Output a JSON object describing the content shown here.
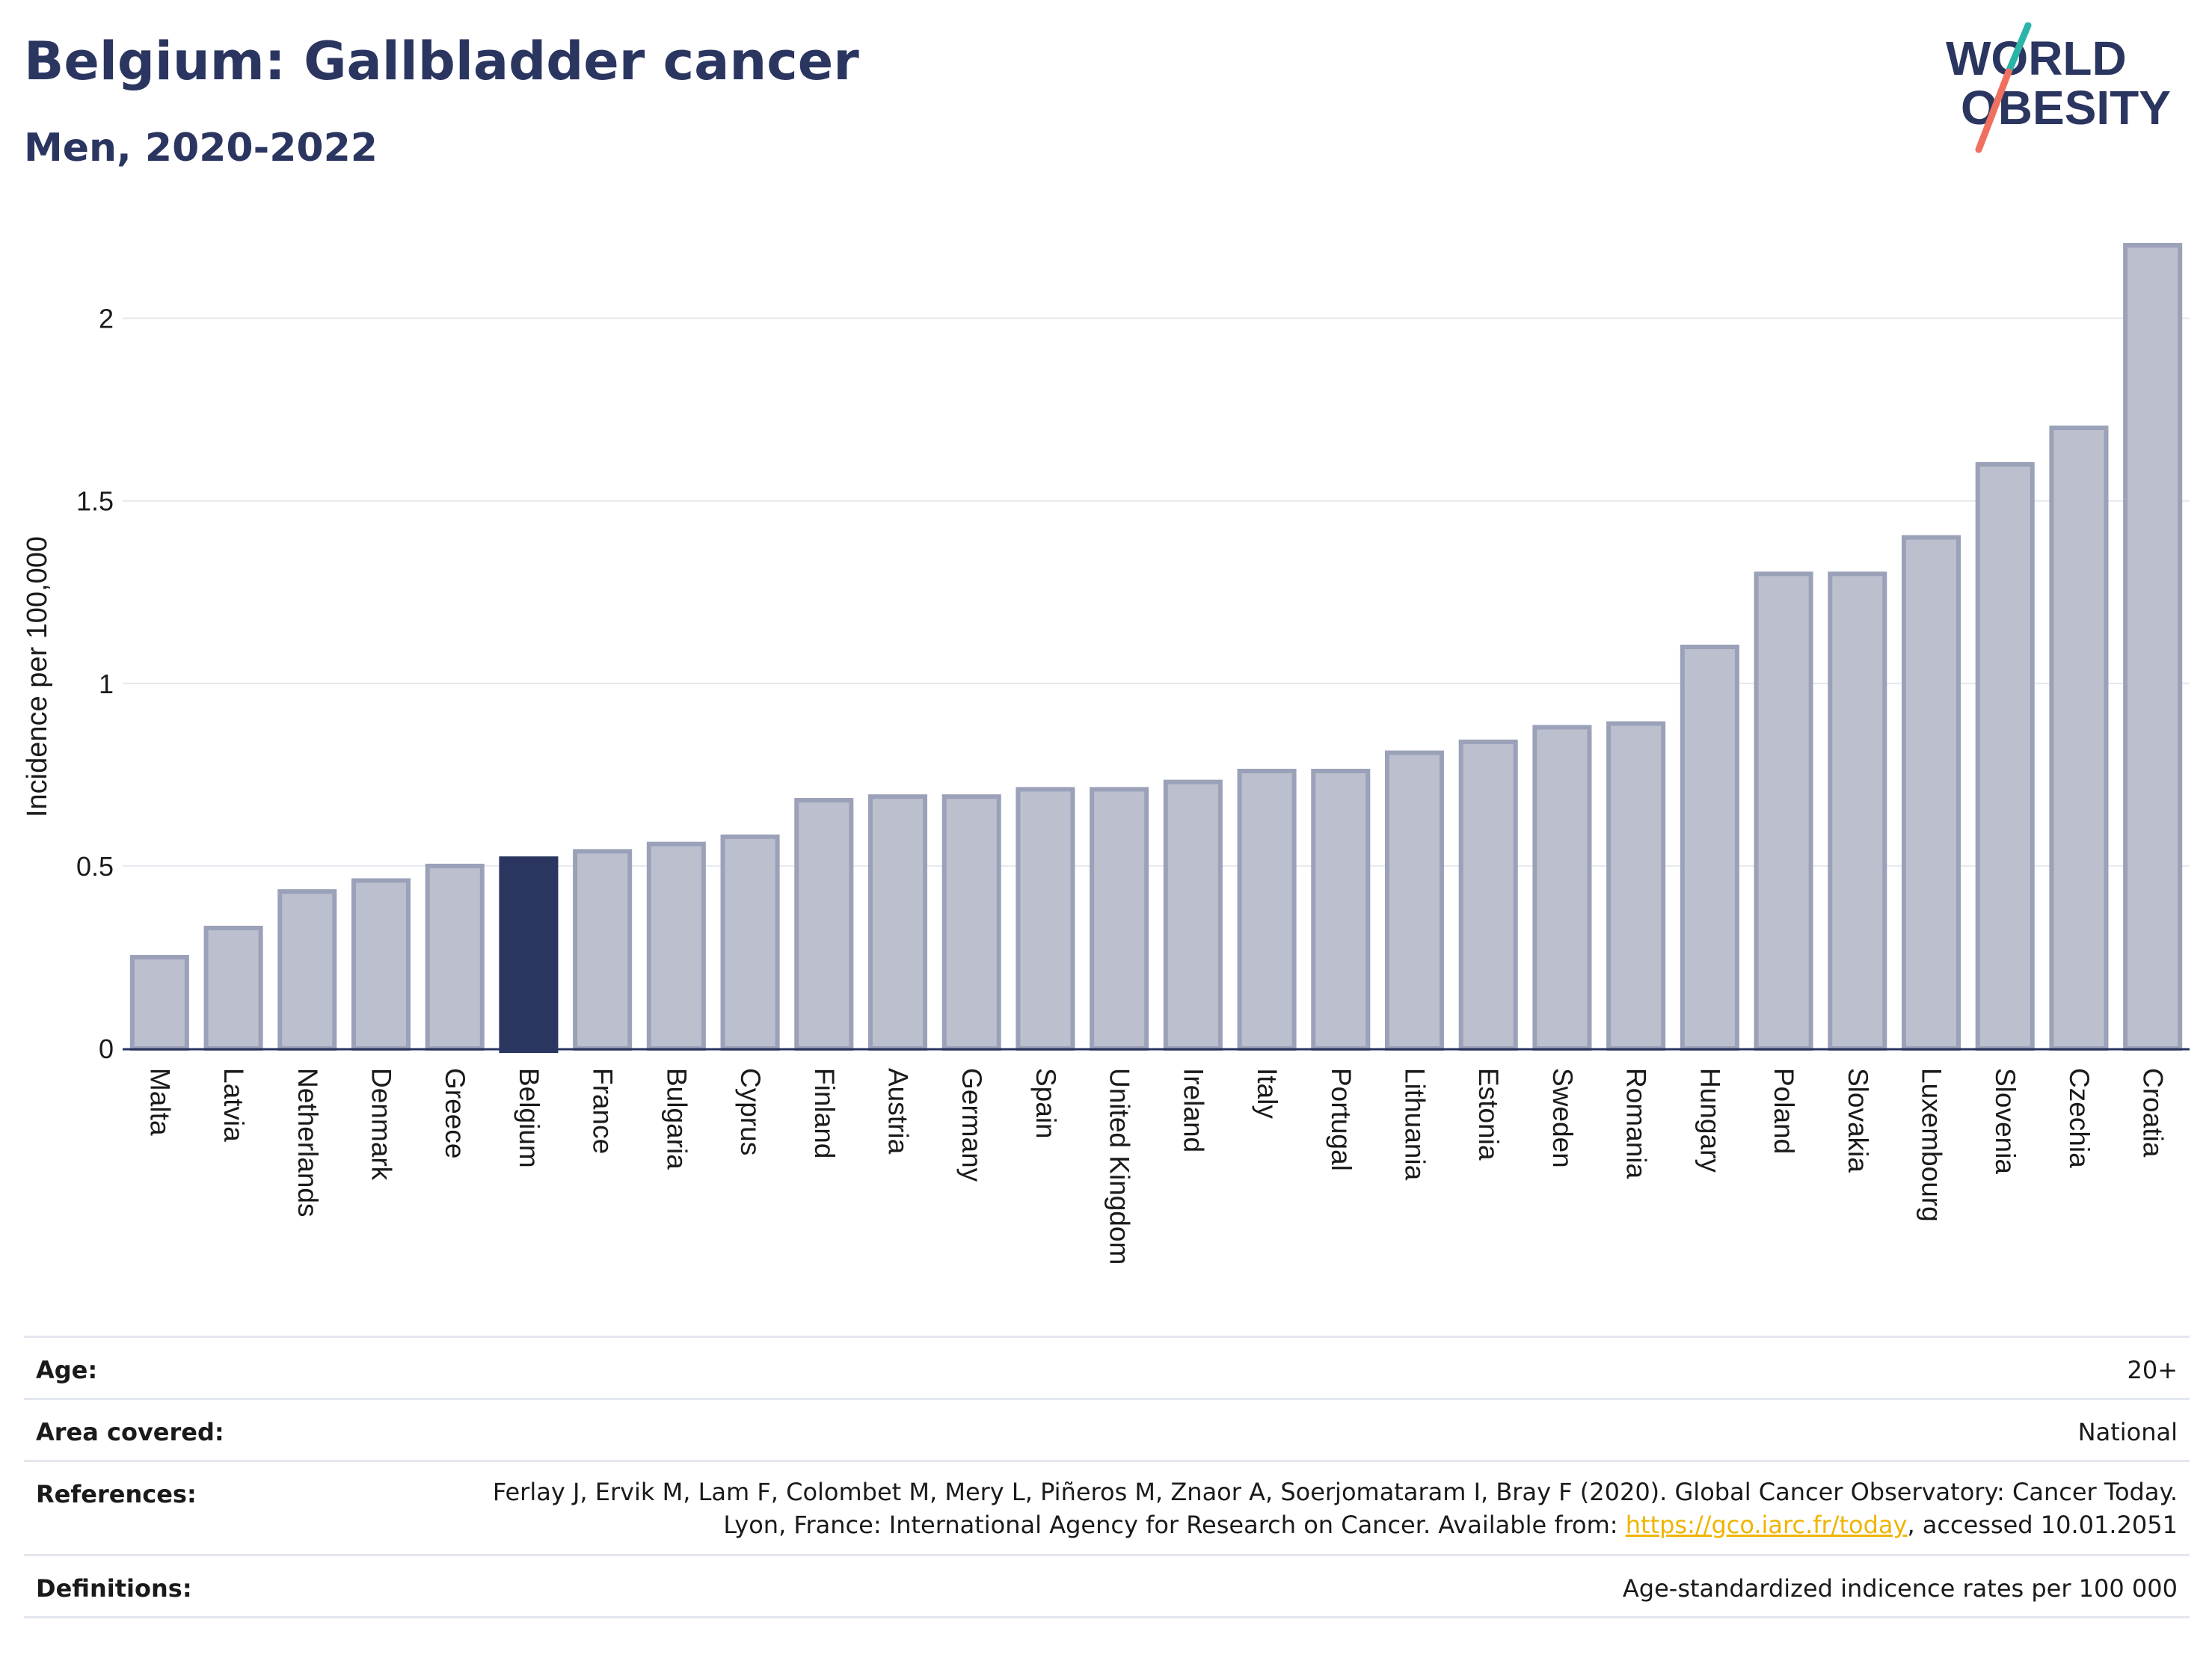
{
  "title": "Belgium: Gallbladder cancer",
  "subtitle": "Men, 2020-2022",
  "logo": {
    "line1": "WORLD",
    "line2": "OBESITY",
    "accent_teal": "#2bb5a8",
    "accent_coral": "#f07060"
  },
  "colors": {
    "bar": "#bcc0ce",
    "bar_stroke": "#9aa1b8",
    "highlight": "#2a3560",
    "grid": "#e6e8ee",
    "axis": "#2a3560"
  },
  "chart_data": {
    "type": "bar",
    "ylabel": "Incidence per 100,000",
    "ylim": [
      0,
      2.2
    ],
    "yticks": [
      0,
      0.5,
      1,
      1.5,
      2
    ],
    "ytick_labels": [
      "0",
      "0.5",
      "1",
      "1.5",
      "2"
    ],
    "highlight": "Belgium",
    "categories": [
      "Malta",
      "Latvia",
      "Netherlands",
      "Denmark",
      "Greece",
      "Belgium",
      "France",
      "Bulgaria",
      "Cyprus",
      "Finland",
      "Austria",
      "Germany",
      "Spain",
      "United Kingdom",
      "Ireland",
      "Italy",
      "Portugal",
      "Lithuania",
      "Estonia",
      "Sweden",
      "Romania",
      "Hungary",
      "Poland",
      "Slovakia",
      "Luxembourg",
      "Slovenia",
      "Czechia",
      "Croatia"
    ],
    "values": [
      0.25,
      0.33,
      0.43,
      0.46,
      0.5,
      0.52,
      0.54,
      0.56,
      0.58,
      0.68,
      0.69,
      0.69,
      0.71,
      0.71,
      0.73,
      0.76,
      0.76,
      0.81,
      0.84,
      0.88,
      0.89,
      1.1,
      1.3,
      1.3,
      1.4,
      1.6,
      1.7,
      2.2
    ]
  },
  "meta": {
    "age_label": "Age:",
    "age_value": "20+",
    "area_label": "Area covered:",
    "area_value": "National",
    "references_label": "References:",
    "references_text_1": "Ferlay J, Ervik M, Lam F, Colombet M, Mery L, Piñeros M, Znaor A, Soerjomataram I, Bray F (2020). Global Cancer Observatory: Cancer Today. Lyon, France: International Agency for Research on Cancer. Available from: ",
    "references_link": "https://gco.iarc.fr/today",
    "references_text_2": ", accessed 10.01.2051",
    "definitions_label": "Definitions:",
    "definitions_value": "Age-standardized indicence rates per 100 000"
  }
}
